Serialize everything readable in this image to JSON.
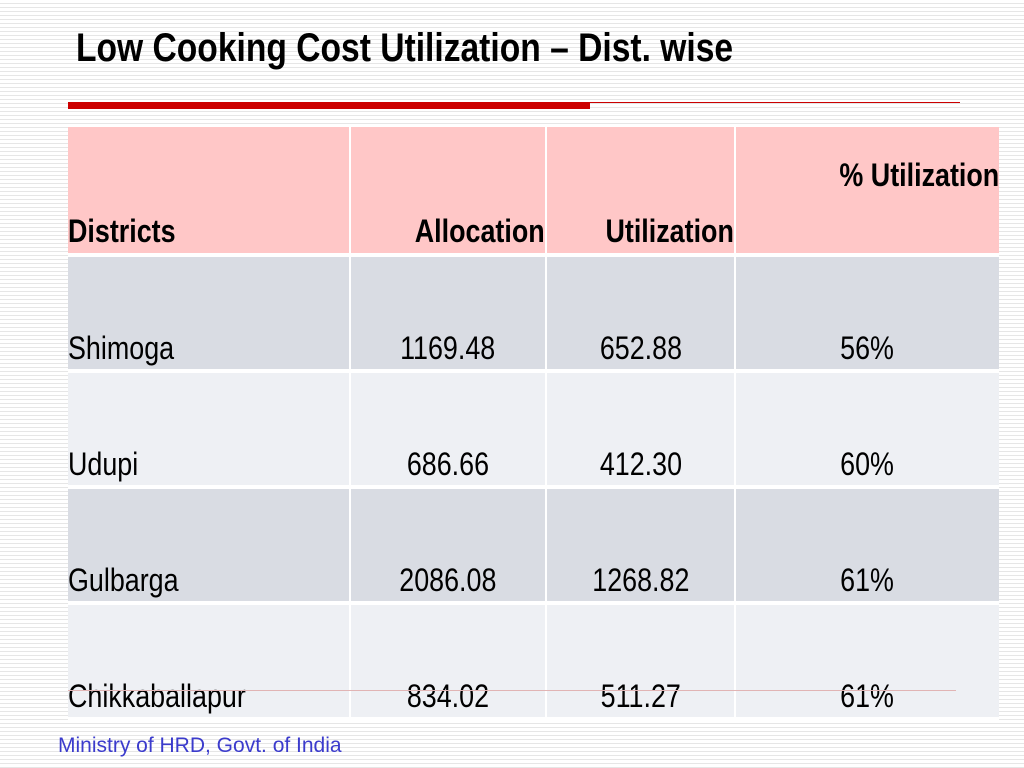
{
  "slide": {
    "title": "Low Cooking Cost Utilization – Dist. wise",
    "footer": "Ministry of HRD, Govt. of India"
  },
  "colors": {
    "title_rule": "#cc0000",
    "header_fill": "#ffc7c7",
    "row_fill_dark": "#d9dce3",
    "row_fill_light": "#eef0f4",
    "footer_text": "#3b3bcc"
  },
  "table": {
    "headers": [
      "Districts",
      "Allocation",
      "Utilization",
      "%  Utilization"
    ],
    "rows": [
      [
        "Shimoga",
        "1169.48",
        "652.88",
        "56%"
      ],
      [
        "Udupi",
        "686.66",
        "412.30",
        "60%"
      ],
      [
        "Gulbarga",
        "2086.08",
        "1268.82",
        "61%"
      ],
      [
        "Chikkaballapur",
        "834.02",
        "511.27",
        "61%"
      ]
    ]
  }
}
